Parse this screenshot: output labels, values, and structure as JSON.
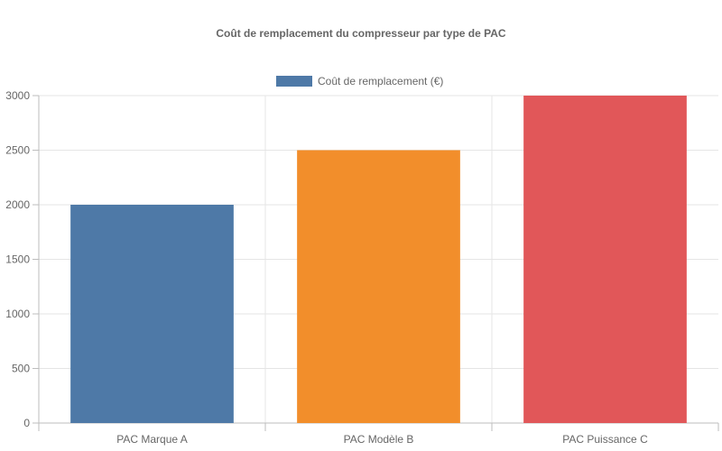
{
  "chart_data": {
    "type": "bar",
    "title": "Coût de remplacement du compresseur par type de PAC",
    "categories": [
      "PAC Marque A",
      "PAC Modèle B",
      "PAC Puissance C"
    ],
    "series": [
      {
        "name": "Coût de remplacement (€)",
        "values": [
          2000,
          2500,
          3000
        ],
        "colors": [
          "#4e79a7",
          "#f28e2b",
          "#e15759"
        ],
        "legend_color": "#4e79a7"
      }
    ],
    "y_ticks": [
      "0",
      "500",
      "1000",
      "1500",
      "2000",
      "2500",
      "3000"
    ],
    "ylim": [
      0,
      3000
    ],
    "xlabel": "",
    "ylabel": "",
    "grid": true,
    "legend_position": "top"
  }
}
